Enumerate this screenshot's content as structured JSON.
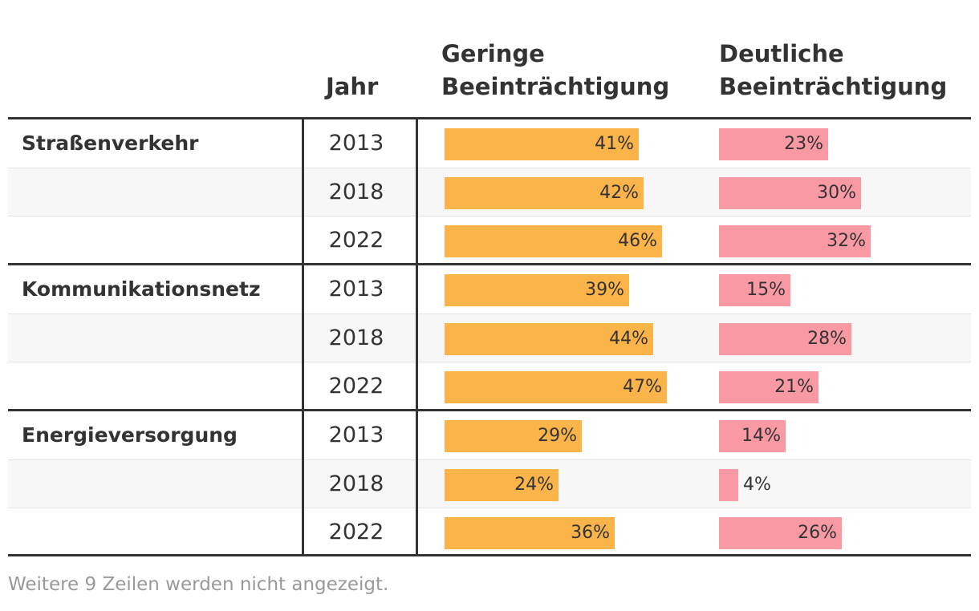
{
  "chart_data": {
    "type": "table",
    "columns": {
      "category": "",
      "year": "Jahr",
      "geringe": [
        "Geringe",
        "Beeinträchtigung"
      ],
      "deutliche": [
        "Deutliche",
        "Beeinträchtigung"
      ]
    },
    "groups": [
      {
        "category": "Straßenverkehr",
        "rows": [
          {
            "year": "2013",
            "geringe": 41,
            "geringe_label": "41%",
            "deutliche": 23,
            "deutliche_label": "23%"
          },
          {
            "year": "2018",
            "geringe": 42,
            "geringe_label": "42%",
            "deutliche": 30,
            "deutliche_label": "30%"
          },
          {
            "year": "2022",
            "geringe": 46,
            "geringe_label": "46%",
            "deutliche": 32,
            "deutliche_label": "32%"
          }
        ]
      },
      {
        "category": "Kommunikationsnetz",
        "rows": [
          {
            "year": "2013",
            "geringe": 39,
            "geringe_label": "39%",
            "deutliche": 15,
            "deutliche_label": "15%"
          },
          {
            "year": "2018",
            "geringe": 44,
            "geringe_label": "44%",
            "deutliche": 28,
            "deutliche_label": "28%"
          },
          {
            "year": "2022",
            "geringe": 47,
            "geringe_label": "47%",
            "deutliche": 21,
            "deutliche_label": "21%"
          }
        ]
      },
      {
        "category": "Energieversorgung",
        "rows": [
          {
            "year": "2013",
            "geringe": 29,
            "geringe_label": "29%",
            "deutliche": 14,
            "deutliche_label": "14%"
          },
          {
            "year": "2018",
            "geringe": 24,
            "geringe_label": "24%",
            "deutliche": 4,
            "deutliche_label": "4%"
          },
          {
            "year": "2022",
            "geringe": 36,
            "geringe_label": "36%",
            "deutliche": 26,
            "deutliche_label": "26%"
          }
        ]
      }
    ],
    "colors": {
      "geringe": "#fbb44a",
      "deutliche": "#f899a4"
    },
    "footer": "Weitere 9 Zeilen werden nicht angezeigt."
  }
}
